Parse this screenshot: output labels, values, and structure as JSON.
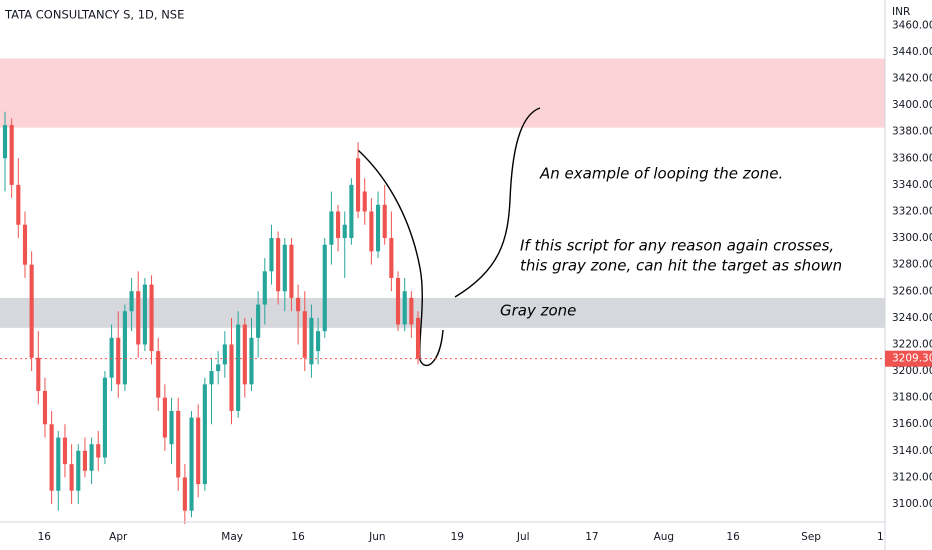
{
  "chart_data": {
    "type": "candlestick",
    "title": "TATA CONSULTANCY S, 1D, NSE",
    "y_unit": "INR",
    "up_color": "#26a69a",
    "down_color": "#ef5350",
    "open": [
      3360,
      3385,
      3340,
      3310,
      3280,
      3210,
      3185,
      3160,
      3110,
      3150,
      3130,
      3110,
      3140,
      3125,
      3145,
      3135,
      3195,
      3225,
      3190,
      3245,
      3260,
      3220,
      3265,
      3215,
      3180,
      3145,
      3170,
      3120,
      3095,
      3165,
      3115,
      3190,
      3200,
      3205,
      3220,
      3170,
      3235,
      3190,
      3225,
      3250,
      3275,
      3300,
      3260,
      3295,
      3255,
      3245,
      3205,
      3215,
      3230,
      3295,
      3320,
      3300,
      3300,
      3360,
      3335,
      3320,
      3290,
      3325,
      3300,
      3270,
      3235,
      3255,
      3240
    ],
    "high": [
      3395,
      3390,
      3360,
      3320,
      3290,
      3230,
      3195,
      3170,
      3155,
      3160,
      3145,
      3145,
      3150,
      3150,
      3155,
      3200,
      3235,
      3245,
      3250,
      3270,
      3275,
      3270,
      3272,
      3225,
      3190,
      3180,
      3180,
      3130,
      3170,
      3175,
      3195,
      3210,
      3215,
      3230,
      3240,
      3245,
      3240,
      3240,
      3260,
      3285,
      3310,
      3305,
      3300,
      3300,
      3265,
      3260,
      3250,
      3240,
      3300,
      3335,
      3325,
      3320,
      3345,
      3372,
      3345,
      3330,
      3335,
      3340,
      3320,
      3275,
      3270,
      3260,
      3245
    ],
    "low": [
      3335,
      3330,
      3300,
      3270,
      3200,
      3175,
      3150,
      3100,
      3095,
      3120,
      3100,
      3100,
      3120,
      3115,
      3125,
      3130,
      3185,
      3180,
      3185,
      3230,
      3210,
      3215,
      3205,
      3170,
      3140,
      3130,
      3110,
      3085,
      3090,
      3105,
      3110,
      3160,
      3190,
      3195,
      3160,
      3165,
      3180,
      3185,
      3210,
      3235,
      3265,
      3250,
      3245,
      3245,
      3220,
      3200,
      3195,
      3205,
      3225,
      3280,
      3290,
      3270,
      3295,
      3315,
      3310,
      3280,
      3285,
      3295,
      3260,
      3230,
      3230,
      3225,
      3205
    ],
    "close": [
      3385,
      3340,
      3310,
      3280,
      3210,
      3185,
      3160,
      3110,
      3150,
      3130,
      3110,
      3140,
      3125,
      3145,
      3135,
      3195,
      3225,
      3190,
      3245,
      3260,
      3220,
      3265,
      3215,
      3180,
      3150,
      3170,
      3120,
      3095,
      3165,
      3115,
      3190,
      3200,
      3205,
      3220,
      3170,
      3235,
      3190,
      3225,
      3250,
      3275,
      3300,
      3260,
      3295,
      3255,
      3245,
      3210,
      3240,
      3230,
      3295,
      3320,
      3300,
      3310,
      3340,
      3320,
      3320,
      3290,
      3325,
      3300,
      3270,
      3235,
      3260,
      3235,
      3209.3
    ],
    "last_price": {
      "value": 3209.3,
      "label": "3209.30",
      "color": "#ef5350"
    },
    "zones": [
      {
        "low": 3383,
        "high": 3435,
        "color": "#fcd3d6"
      },
      {
        "low": 3232.5,
        "high": 3255,
        "color": "#d6d8de"
      }
    ],
    "annotations": [
      "An example of looping the zone.",
      "If this script for any reason again crosses,",
      "this gray zone, can hit the target as shown",
      "Gray zone"
    ],
    "ylim": [
      3086.5,
      3479
    ],
    "yticks": [
      {
        "value": 3100,
        "label": "3100.00"
      },
      {
        "value": 3120,
        "label": "3120.00"
      },
      {
        "value": 3140,
        "label": "3140.00"
      },
      {
        "value": 3160,
        "label": "3160.00"
      },
      {
        "value": 3180,
        "label": "3180.00"
      },
      {
        "value": 3200,
        "label": "3200.00"
      },
      {
        "value": 3220,
        "label": "3220.00"
      },
      {
        "value": 3240,
        "label": "3240.00"
      },
      {
        "value": 3260,
        "label": "3260.00"
      },
      {
        "value": 3280,
        "label": "3280.00"
      },
      {
        "value": 3300,
        "label": "3300.00"
      },
      {
        "value": 3320,
        "label": "3320.00"
      },
      {
        "value": 3340,
        "label": "3340.00"
      },
      {
        "value": 3360,
        "label": "3360.00"
      },
      {
        "value": 3380,
        "label": "3380.00"
      },
      {
        "value": 3400,
        "label": "3400.00"
      },
      {
        "value": 3420,
        "label": "3420.00"
      },
      {
        "value": 3440,
        "label": "3440.00"
      },
      {
        "value": 3460,
        "label": "3460.00"
      }
    ],
    "xlim": [
      -0.75,
      132.1
    ],
    "xticks": [
      {
        "value": 5.9,
        "label": "16"
      },
      {
        "value": 17.0,
        "label": "Apr"
      },
      {
        "value": 34.1,
        "label": "May"
      },
      {
        "value": 44.0,
        "label": "16"
      },
      {
        "value": 55.9,
        "label": "Jun"
      },
      {
        "value": 67.9,
        "label": "19"
      },
      {
        "value": 77.8,
        "label": "Jul"
      },
      {
        "value": 88.1,
        "label": "17"
      },
      {
        "value": 98.9,
        "label": "Aug"
      },
      {
        "value": 109.3,
        "label": "16"
      },
      {
        "value": 121.0,
        "label": "Sep"
      },
      {
        "value": 131.4,
        "label": "1"
      }
    ],
    "grid": false
  }
}
